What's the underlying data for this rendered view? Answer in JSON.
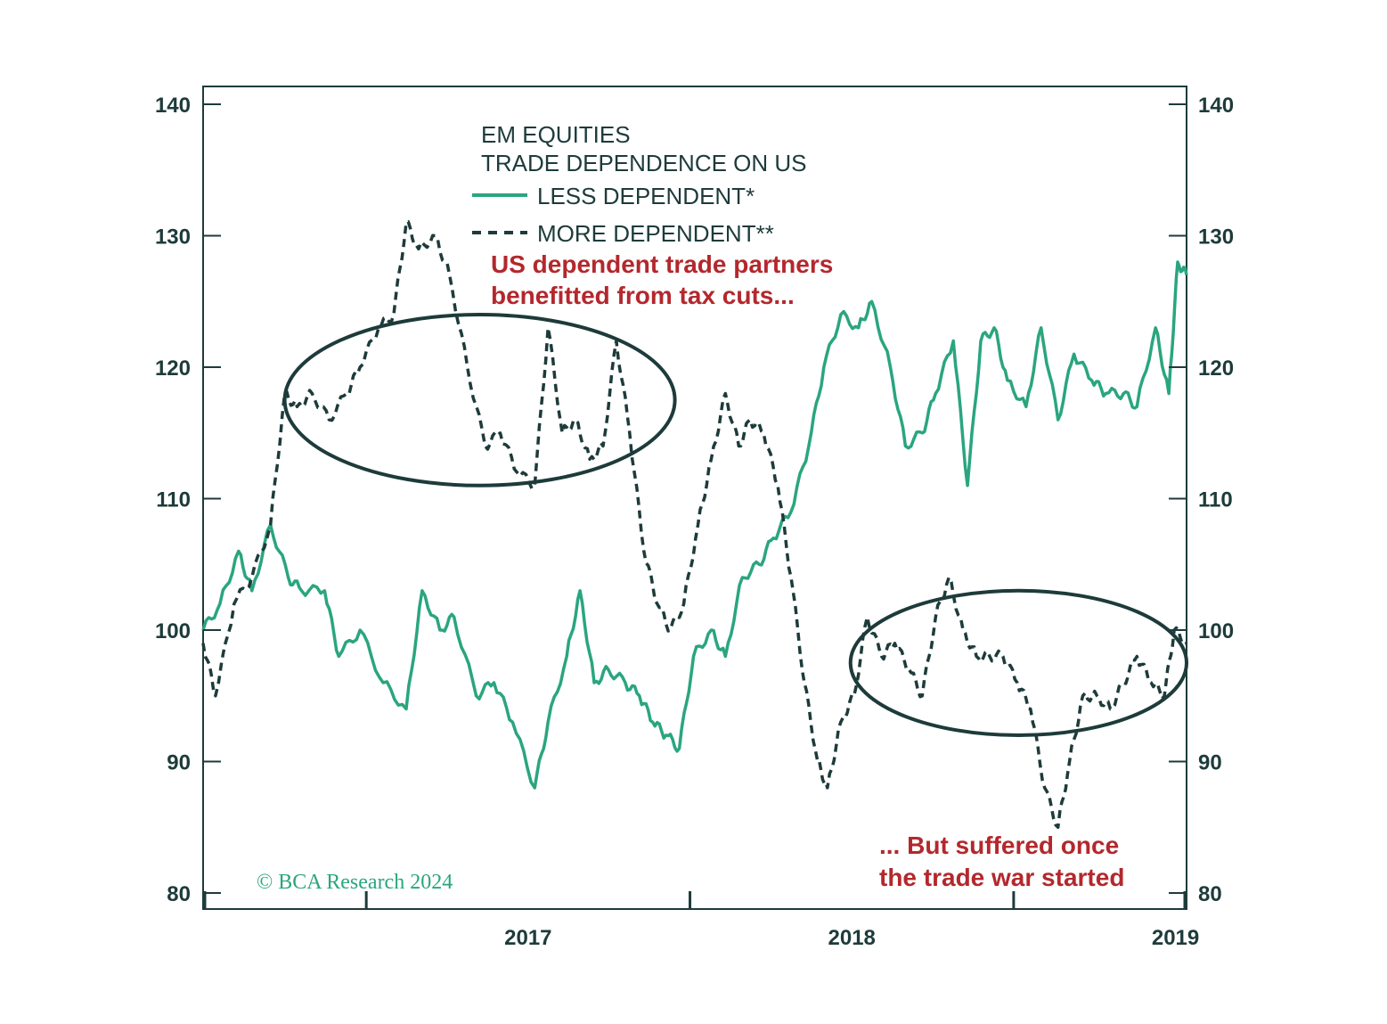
{
  "chart_data": {
    "type": "line",
    "legend": {
      "title_line1": "EM EQUITIES",
      "title_line2": "TRADE DEPENDENCE ON US",
      "placement": "top-center"
    },
    "x_axis": {
      "type": "date",
      "range": [
        "2016-07-01",
        "2019-07-15"
      ],
      "ticks": [
        "2017-01-01",
        "2018-01-01",
        "2019-01-01"
      ],
      "tick_labels": [
        "2017",
        "2018",
        "2019"
      ]
    },
    "y_axis_left": {
      "range": [
        80,
        140
      ],
      "ticks": [
        80,
        90,
        100,
        110,
        120,
        130,
        140
      ]
    },
    "y_axis_right": {
      "range": [
        80,
        140
      ],
      "ticks": [
        80,
        90,
        100,
        110,
        120,
        130,
        140
      ]
    },
    "grid": false,
    "series": [
      {
        "name": "LESS DEPENDENT*",
        "color": "#2aa57f",
        "style": "solid",
        "x": [
          "2016-07-01",
          "2016-07-20",
          "2016-08-10",
          "2016-08-25",
          "2016-09-15",
          "2016-10-05",
          "2016-10-20",
          "2016-11-15",
          "2016-12-01",
          "2016-12-25",
          "2017-01-20",
          "2017-02-15",
          "2017-03-05",
          "2017-03-25",
          "2017-04-10",
          "2017-05-05",
          "2017-05-25",
          "2017-06-15",
          "2017-07-10",
          "2017-07-25",
          "2017-08-15",
          "2017-08-30",
          "2017-09-15",
          "2017-10-01",
          "2017-10-20",
          "2017-11-05",
          "2017-11-20",
          "2017-12-05",
          "2017-12-20",
          "2018-01-05",
          "2018-01-25",
          "2018-02-10",
          "2018-03-01",
          "2018-03-20",
          "2018-04-05",
          "2018-04-25",
          "2018-05-15",
          "2018-06-01",
          "2018-06-20",
          "2018-07-10",
          "2018-07-25",
          "2018-08-15",
          "2018-09-01",
          "2018-09-20",
          "2018-10-05",
          "2018-10-25",
          "2018-11-10",
          "2018-11-25",
          "2018-12-10",
          "2018-12-25",
          "2019-01-15",
          "2019-02-01",
          "2019-02-20",
          "2019-03-10",
          "2019-03-30",
          "2019-04-15",
          "2019-05-05",
          "2019-05-20",
          "2019-06-10",
          "2019-06-25",
          "2019-07-05",
          "2019-07-15"
        ],
        "y": [
          100,
          102,
          106,
          103,
          108,
          104,
          103,
          103,
          98,
          100,
          96,
          94,
          103,
          100,
          101,
          95,
          96,
          93,
          88,
          93,
          98,
          103,
          96,
          97,
          96,
          95,
          93,
          92,
          91,
          98,
          100,
          98,
          104,
          105,
          107,
          109,
          114,
          120,
          124,
          123,
          125,
          120,
          114,
          115,
          118,
          122,
          111,
          122,
          123,
          119,
          117,
          123,
          116,
          121,
          119,
          118,
          118,
          117,
          123,
          118,
          128,
          127
        ]
      },
      {
        "name": "MORE DEPENDENT**",
        "color": "#1d3b3a",
        "style": "dashed",
        "x": [
          "2016-07-01",
          "2016-07-15",
          "2016-08-05",
          "2016-08-25",
          "2016-09-15",
          "2016-10-01",
          "2016-10-15",
          "2016-11-01",
          "2016-11-20",
          "2016-12-10",
          "2016-12-25",
          "2017-01-15",
          "2017-02-01",
          "2017-02-15",
          "2017-03-01",
          "2017-03-20",
          "2017-04-05",
          "2017-04-25",
          "2017-05-15",
          "2017-06-01",
          "2017-06-20",
          "2017-07-10",
          "2017-07-25",
          "2017-08-10",
          "2017-08-25",
          "2017-09-10",
          "2017-09-25",
          "2017-10-10",
          "2017-10-25",
          "2017-11-10",
          "2017-11-25",
          "2017-12-10",
          "2017-12-25",
          "2018-01-10",
          "2018-01-25",
          "2018-02-10",
          "2018-02-25",
          "2018-03-10",
          "2018-03-25",
          "2018-04-10",
          "2018-04-25",
          "2018-05-10",
          "2018-05-25",
          "2018-06-05",
          "2018-06-20",
          "2018-07-05",
          "2018-07-20",
          "2018-08-05",
          "2018-08-20",
          "2018-09-05",
          "2018-09-20",
          "2018-10-05",
          "2018-10-20",
          "2018-11-05",
          "2018-11-20",
          "2018-12-05",
          "2018-12-20",
          "2019-01-05",
          "2019-01-20",
          "2019-02-05",
          "2019-02-20",
          "2019-03-05",
          "2019-03-20",
          "2019-04-05",
          "2019-04-20",
          "2019-05-05",
          "2019-05-20",
          "2019-06-05",
          "2019-06-20",
          "2019-07-01",
          "2019-07-15"
        ],
        "y": [
          99,
          95,
          102,
          104,
          108,
          118,
          117,
          118,
          116,
          118,
          120,
          123,
          124,
          131,
          129,
          130,
          127,
          120,
          114,
          115,
          112,
          111,
          123,
          115,
          116,
          113,
          114,
          122,
          115,
          106,
          102,
          100,
          102,
          108,
          113,
          118,
          114,
          116,
          115,
          111,
          104,
          96,
          90,
          88,
          93,
          95,
          101,
          98,
          99,
          97,
          95,
          101,
          104,
          100,
          98,
          98,
          98,
          96,
          94,
          88,
          85,
          90,
          95,
          95,
          94,
          96,
          98,
          96,
          95,
          100,
          99
        ]
      }
    ],
    "annotations": [
      {
        "text_line1": "US dependent trade partners",
        "text_line2": "benefitted from tax cuts...",
        "color": "#b3282d"
      },
      {
        "text_line1": "... But suffered once",
        "text_line2": "the trade war started",
        "color": "#b3282d"
      }
    ],
    "ellipses": [
      {
        "x_range": [
          "2016-10-01",
          "2017-12-15"
        ],
        "y_range": [
          111,
          124
        ]
      },
      {
        "x_range": [
          "2018-07-01",
          "2019-07-15"
        ],
        "y_range": [
          92,
          103
        ]
      }
    ],
    "credit": "© BCA Research 2024"
  }
}
